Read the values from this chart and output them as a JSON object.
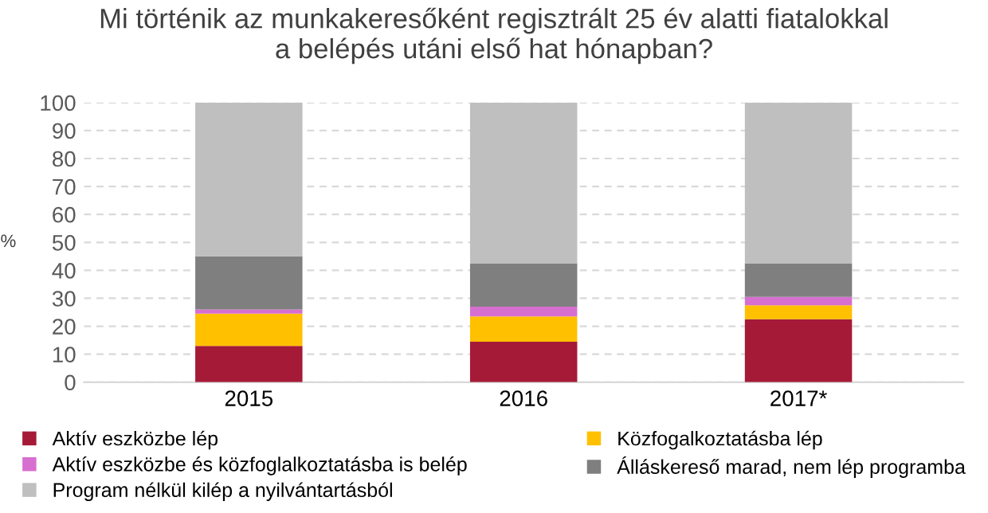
{
  "chart_data": {
    "type": "bar",
    "stacked": true,
    "title": "Mi történik az munkakeresőként regisztrált 25 év alatti fiatalokkal\na belépés utáni első hat hónapban?",
    "ylabel": "%",
    "categories": [
      "2015",
      "2016",
      "2017*"
    ],
    "series": [
      {
        "name": "Aktív eszközbe lép",
        "color": "#a51a37",
        "values": [
          13,
          14.5,
          22.5
        ]
      },
      {
        "name": "Közfogalkoztatásba lép",
        "color": "#ffc000",
        "values": [
          11.5,
          9,
          5
        ]
      },
      {
        "name": "Aktív eszközbe és közfoglalkoztatásba is belép",
        "color": "#d76fd0",
        "values": [
          1.5,
          3.5,
          3
        ]
      },
      {
        "name": "Álláskereső marad, nem lép programba",
        "color": "#7f7f7f",
        "values": [
          19,
          15.5,
          12
        ]
      },
      {
        "name": "Program nélkül kilép a nyilvántartásból",
        "color": "#bfbfbf",
        "values": [
          55,
          57.5,
          57.5
        ]
      }
    ],
    "ylim": [
      0,
      100
    ],
    "yticks": [
      0,
      10,
      20,
      30,
      40,
      50,
      60,
      70,
      80,
      90,
      100
    ],
    "grid": "y",
    "legend": "bottom"
  }
}
